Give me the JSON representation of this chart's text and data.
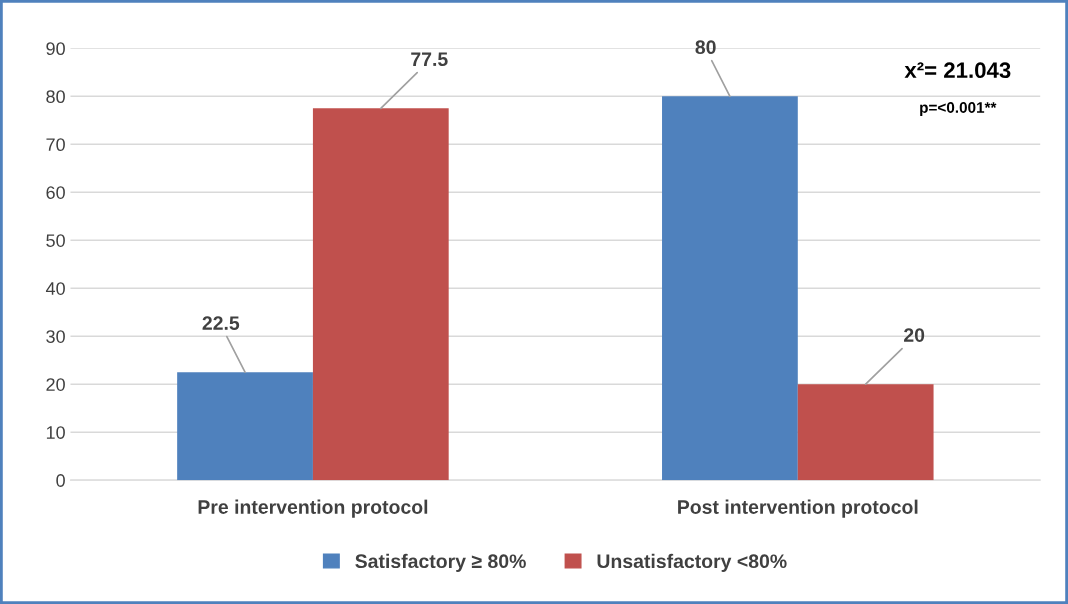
{
  "chart_data": {
    "type": "bar",
    "categories": [
      "Pre intervention protocol",
      "Post intervention protocol"
    ],
    "series": [
      {
        "name": "Satisfactory ≥ 80%",
        "color": "#4f81bd",
        "values": [
          22.5,
          80
        ]
      },
      {
        "name": "Unsatisfactory <80%",
        "color": "#c0504d",
        "values": [
          77.5,
          20
        ]
      }
    ],
    "ylim": [
      0,
      90
    ],
    "yticks": [
      0,
      10,
      20,
      30,
      40,
      50,
      60,
      70,
      80,
      90
    ],
    "grid": "y",
    "legend": "bottom",
    "data_labels": true,
    "annotations": [
      "x²= 21.043",
      "p=<0.001**"
    ]
  }
}
